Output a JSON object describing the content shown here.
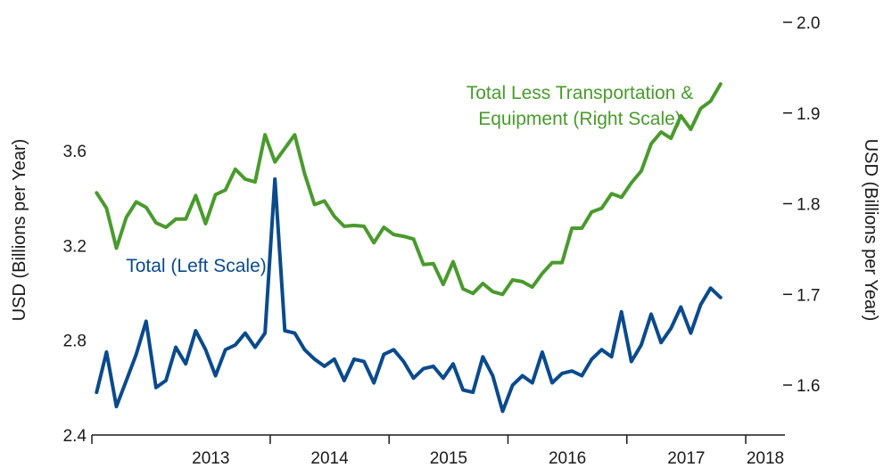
{
  "chart_data": {
    "type": "line",
    "title": "",
    "x_tick_labels": [
      "2013",
      "2014",
      "2015",
      "2016",
      "2017",
      "2018"
    ],
    "left_axis": {
      "label": "USD (Billions per Year)",
      "range": [
        2.4,
        3.85
      ],
      "ticks": [
        2.4,
        2.8,
        3.2,
        3.6
      ],
      "tick_labels": [
        "2.4",
        "2.8",
        "3.2",
        "3.6"
      ]
    },
    "right_axis": {
      "label": "USD (Billions per Year)",
      "range": [
        1.55,
        2.0
      ],
      "ticks": [
        1.6,
        1.7,
        1.8,
        1.9,
        2.0
      ],
      "tick_labels": [
        "1.6",
        "1.7",
        "1.8",
        "1.9",
        "2.0"
      ]
    },
    "x_range": [
      2012.5,
      2018.33
    ],
    "series": [
      {
        "name": "Total",
        "label": "Total (Left Scale)",
        "axis": "left",
        "color": "#0a4a8c",
        "x_start": 2012.54,
        "x_step": 0.0833,
        "values": [
          2.58,
          2.75,
          2.52,
          2.63,
          2.74,
          2.88,
          2.6,
          2.63,
          2.77,
          2.7,
          2.84,
          2.76,
          2.65,
          2.76,
          2.78,
          2.83,
          2.77,
          2.83,
          3.48,
          2.84,
          2.83,
          2.76,
          2.72,
          2.69,
          2.72,
          2.63,
          2.72,
          2.71,
          2.62,
          2.74,
          2.76,
          2.71,
          2.64,
          2.68,
          2.69,
          2.64,
          2.7,
          2.59,
          2.58,
          2.73,
          2.65,
          2.5,
          2.61,
          2.65,
          2.62,
          2.75,
          2.62,
          2.66,
          2.67,
          2.65,
          2.72,
          2.76,
          2.73,
          2.92,
          2.71,
          2.78,
          2.91,
          2.79,
          2.85,
          2.94,
          2.83,
          2.95,
          3.02,
          2.98
        ]
      },
      {
        "name": "Total Less Transportation & Equipment",
        "label_line1": "Total Less Transportation &",
        "label_line2": "Equipment (Right Scale)",
        "axis": "right",
        "color": "#4a9a2e",
        "x_start": 2012.54,
        "x_step": 0.0833,
        "values": [
          1.812,
          1.795,
          1.751,
          1.785,
          1.802,
          1.796,
          1.779,
          1.774,
          1.783,
          1.783,
          1.809,
          1.778,
          1.81,
          1.815,
          1.838,
          1.827,
          1.824,
          1.876,
          1.846,
          1.861,
          1.876,
          1.833,
          1.799,
          1.803,
          1.786,
          1.775,
          1.776,
          1.775,
          1.757,
          1.774,
          1.766,
          1.764,
          1.761,
          1.733,
          1.734,
          1.711,
          1.736,
          1.706,
          1.701,
          1.712,
          1.703,
          1.7,
          1.716,
          1.714,
          1.708,
          1.723,
          1.735,
          1.735,
          1.773,
          1.773,
          1.791,
          1.795,
          1.811,
          1.807,
          1.823,
          1.836,
          1.866,
          1.879,
          1.872,
          1.897,
          1.882,
          1.905,
          1.913,
          1.932
        ]
      }
    ],
    "grid": false,
    "legend": "inline labels"
  }
}
